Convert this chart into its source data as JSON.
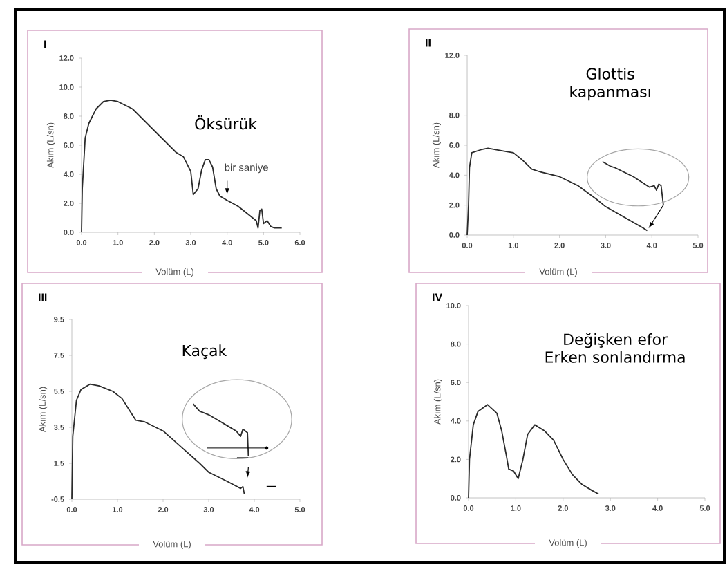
{
  "chart_data": [
    {
      "type": "line",
      "title": "Öksürük",
      "xlabel": "Volüm (L)",
      "ylabel": "Akım (L/sn)",
      "xlim": [
        0,
        6
      ],
      "ylim": [
        0,
        12
      ],
      "xticks": [
        {
          "value": 0,
          "label": "0.0"
        },
        {
          "value": 1,
          "label": "1.0"
        },
        {
          "value": 2,
          "label": "2.0"
        },
        {
          "value": 3,
          "label": "3.0"
        },
        {
          "value": 4,
          "label": "4.0"
        },
        {
          "value": 5,
          "label": "5.0"
        },
        {
          "value": 6,
          "label": "6.0"
        }
      ],
      "yticks": [
        {
          "value": 0,
          "label": "0.0"
        },
        {
          "value": 2,
          "label": "2.0"
        },
        {
          "value": 4,
          "label": "4.0"
        },
        {
          "value": 6,
          "label": "6.0"
        },
        {
          "value": 8,
          "label": "8.0"
        },
        {
          "value": 10,
          "label": "10.0"
        },
        {
          "value": 12,
          "label": "12.0"
        }
      ],
      "series": [
        {
          "color": "#2b2b2b",
          "x": [
            0,
            0.02,
            0.1,
            0.2,
            0.4,
            0.6,
            0.8,
            1.0,
            1.4,
            1.8,
            2.2,
            2.6,
            2.8,
            3.0,
            3.07,
            3.2,
            3.3,
            3.4,
            3.5,
            3.6,
            3.7,
            3.8,
            4.0,
            4.3,
            4.6,
            4.8,
            4.85,
            4.9,
            4.95,
            5.0,
            5.1,
            5.2,
            5.3,
            5.5
          ],
          "values": [
            0,
            3,
            6.5,
            7.5,
            8.5,
            9,
            9.1,
            9,
            8.5,
            7.5,
            6.5,
            5.5,
            5.2,
            4.2,
            2.6,
            3,
            4.3,
            5,
            5,
            4.5,
            3,
            2.5,
            2.2,
            1.8,
            1.2,
            0.8,
            0.3,
            1.5,
            1.6,
            0.6,
            0.8,
            0.4,
            0.3,
            0.3
          ]
        }
      ],
      "annotations": [
        "I",
        {
          "text": "bir saniye",
          "x": 4.0,
          "y": 2.6
        }
      ]
    },
    {
      "type": "line",
      "title": "Glottis kapanması",
      "xlabel": "Volüm (L)",
      "ylabel": "Akım (L/sn)",
      "xlim": [
        0,
        5
      ],
      "ylim": [
        0,
        12
      ],
      "xticks": [
        {
          "value": 0,
          "label": "0.0"
        },
        {
          "value": 1,
          "label": "1.0"
        },
        {
          "value": 2,
          "label": "2.0"
        },
        {
          "value": 3,
          "label": "3.0"
        },
        {
          "value": 4,
          "label": "4.0"
        },
        {
          "value": 5,
          "label": "5.0"
        }
      ],
      "yticks": [
        {
          "value": 0,
          "label": "0.0"
        },
        {
          "value": 2,
          "label": "2.0"
        },
        {
          "value": 4,
          "label": "4.0"
        },
        {
          "value": 6,
          "label": "6.0"
        },
        {
          "value": 8,
          "label": "8.0"
        },
        {
          "value": 12,
          "label": "12.0"
        }
      ],
      "series": [
        {
          "color": "#2b2b2b",
          "x": [
            0,
            0.03,
            0.05,
            0.1,
            0.3,
            0.45,
            0.8,
            1.0,
            1.2,
            1.4,
            1.6,
            2.0,
            2.4,
            2.8,
            3.0,
            3.4,
            3.8,
            3.9
          ],
          "values": [
            0,
            2,
            4.5,
            5.5,
            5.7,
            5.8,
            5.6,
            5.5,
            5.0,
            4.4,
            4.2,
            3.9,
            3.3,
            2.4,
            1.9,
            1.2,
            0.5,
            0.3
          ]
        },
        {
          "color": "#2b2b2b",
          "x": [
            2.93,
            3.1,
            3.2,
            3.4,
            3.6,
            3.8,
            3.95,
            4.05,
            4.1,
            4.15,
            4.2,
            4.25
          ],
          "values": [
            4.9,
            4.6,
            4.5,
            4.2,
            3.9,
            3.5,
            3.2,
            3.3,
            3.0,
            3.4,
            3.3,
            2.0
          ]
        }
      ],
      "annotations": [
        "II"
      ]
    },
    {
      "type": "line",
      "title": "Kaçak",
      "xlabel": "Volüm (L)",
      "ylabel": "Akım (L/sn)",
      "xlim": [
        0,
        5
      ],
      "ylim": [
        -0.5,
        9.5
      ],
      "xticks": [
        {
          "value": 0,
          "label": "0.0"
        },
        {
          "value": 1,
          "label": "1.0"
        },
        {
          "value": 2,
          "label": "2.0"
        },
        {
          "value": 3,
          "label": "3.0"
        },
        {
          "value": 4,
          "label": "4.0"
        },
        {
          "value": 5,
          "label": "5.0"
        }
      ],
      "yticks": [
        {
          "value": -0.5,
          "label": "-0.5"
        },
        {
          "value": 1.5,
          "label": "1.5"
        },
        {
          "value": 3.5,
          "label": "3.5"
        },
        {
          "value": 5.5,
          "label": "5.5"
        },
        {
          "value": 7.5,
          "label": "7.5"
        },
        {
          "value": 9.5,
          "label": "9.5"
        }
      ],
      "series": [
        {
          "color": "#2b2b2b",
          "x": [
            0,
            0.02,
            0.1,
            0.2,
            0.4,
            0.6,
            0.9,
            1.1,
            1.3,
            1.4,
            1.6,
            2.0,
            2.4,
            2.8,
            3.0,
            3.4,
            3.7,
            3.75,
            3.78
          ],
          "values": [
            -0.5,
            3,
            5,
            5.6,
            5.9,
            5.8,
            5.5,
            5.1,
            4.3,
            3.9,
            3.8,
            3.3,
            2.4,
            1.5,
            1.0,
            0.5,
            0.1,
            0.2,
            -0.2
          ]
        },
        {
          "color": "#2b2b2b",
          "x": [
            2.66,
            2.8,
            3.0,
            3.2,
            3.4,
            3.6,
            3.7,
            3.75,
            3.8,
            3.85,
            3.87
          ],
          "values": [
            4.8,
            4.4,
            4.2,
            3.9,
            3.6,
            3.3,
            3.0,
            3.4,
            3.3,
            3.2,
            1.9
          ]
        }
      ],
      "annotations": [
        "III"
      ]
    },
    {
      "type": "line",
      "title": "Değişken efor",
      "subtitle": "Erken sonlandırma",
      "xlabel": "Volüm (L)",
      "ylabel": "Akım (L/sn)",
      "xlim": [
        0,
        5
      ],
      "ylim": [
        0,
        10
      ],
      "xticks": [
        {
          "value": 0,
          "label": "0.0"
        },
        {
          "value": 1,
          "label": "1.0"
        },
        {
          "value": 2,
          "label": "2.0"
        },
        {
          "value": 3,
          "label": "3.0"
        },
        {
          "value": 4,
          "label": "4.0"
        },
        {
          "value": 5,
          "label": "5.0"
        }
      ],
      "yticks": [
        {
          "value": 0,
          "label": "0.0"
        },
        {
          "value": 2,
          "label": "2.0"
        },
        {
          "value": 4,
          "label": "4.0"
        },
        {
          "value": 6,
          "label": "6.0"
        },
        {
          "value": 8,
          "label": "8.0"
        },
        {
          "value": 10,
          "label": "10.0"
        }
      ],
      "series": [
        {
          "color": "#2b2b2b",
          "x": [
            0,
            0.02,
            0.1,
            0.2,
            0.4,
            0.6,
            0.7,
            0.8,
            0.85,
            0.95,
            1.05,
            1.15,
            1.25,
            1.4,
            1.6,
            1.8,
            2.0,
            2.2,
            2.4,
            2.6,
            2.75
          ],
          "values": [
            0,
            2,
            3.8,
            4.5,
            4.85,
            4.4,
            3.5,
            2.2,
            1.5,
            1.4,
            1.0,
            2.0,
            3.3,
            3.8,
            3.5,
            3.0,
            2.0,
            1.2,
            0.7,
            0.4,
            0.2
          ]
        }
      ],
      "annotations": [
        "IV"
      ]
    }
  ]
}
